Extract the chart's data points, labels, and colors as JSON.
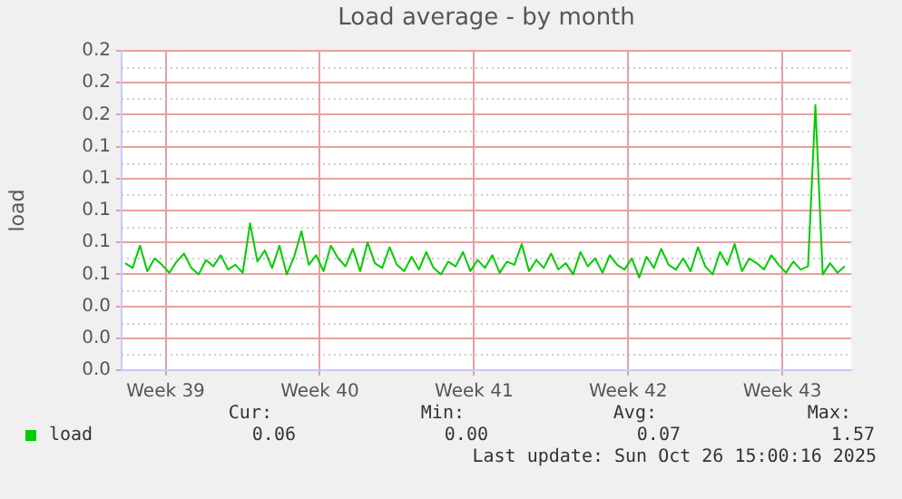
{
  "chart_data": {
    "type": "line",
    "title": "Load average - by month",
    "ylabel": "load",
    "x": [
      "2025-09-23T16:00",
      "2025-09-24T00:00",
      "2025-09-24T08:00",
      "2025-09-24T16:00",
      "2025-09-25T00:00",
      "2025-09-25T08:00",
      "2025-09-25T16:00",
      "2025-09-26T00:00",
      "2025-09-26T08:00",
      "2025-09-26T16:00",
      "2025-09-27T00:00",
      "2025-09-27T08:00",
      "2025-09-27T16:00",
      "2025-09-28T00:00",
      "2025-09-28T08:00",
      "2025-09-28T16:00",
      "2025-09-29T00:00",
      "2025-09-29T08:00",
      "2025-09-29T16:00",
      "2025-09-30T00:00",
      "2025-09-30T08:00",
      "2025-09-30T16:00",
      "2025-10-01T00:00",
      "2025-10-01T08:00",
      "2025-10-01T16:00",
      "2025-10-02T00:00",
      "2025-10-02T08:00",
      "2025-10-02T16:00",
      "2025-10-03T00:00",
      "2025-10-03T08:00",
      "2025-10-03T16:00",
      "2025-10-04T00:00",
      "2025-10-04T08:00",
      "2025-10-04T16:00",
      "2025-10-05T00:00",
      "2025-10-05T08:00",
      "2025-10-05T16:00",
      "2025-10-06T00:00",
      "2025-10-06T08:00",
      "2025-10-06T16:00",
      "2025-10-07T00:00",
      "2025-10-07T08:00",
      "2025-10-07T16:00",
      "2025-10-08T00:00",
      "2025-10-08T08:00",
      "2025-10-08T16:00",
      "2025-10-09T00:00",
      "2025-10-09T08:00",
      "2025-10-09T16:00",
      "2025-10-10T00:00",
      "2025-10-10T08:00",
      "2025-10-10T16:00",
      "2025-10-11T00:00",
      "2025-10-11T08:00",
      "2025-10-11T16:00",
      "2025-10-12T00:00",
      "2025-10-12T08:00",
      "2025-10-12T16:00",
      "2025-10-13T00:00",
      "2025-10-13T08:00",
      "2025-10-13T16:00",
      "2025-10-14T00:00",
      "2025-10-14T08:00",
      "2025-10-14T16:00",
      "2025-10-15T00:00",
      "2025-10-15T08:00",
      "2025-10-15T16:00",
      "2025-10-16T00:00",
      "2025-10-16T08:00",
      "2025-10-16T16:00",
      "2025-10-17T00:00",
      "2025-10-17T08:00",
      "2025-10-17T16:00",
      "2025-10-18T00:00",
      "2025-10-18T08:00",
      "2025-10-18T16:00",
      "2025-10-19T00:00",
      "2025-10-19T08:00",
      "2025-10-19T16:00",
      "2025-10-20T00:00",
      "2025-10-20T08:00",
      "2025-10-20T16:00",
      "2025-10-21T00:00",
      "2025-10-21T08:00",
      "2025-10-21T16:00",
      "2025-10-22T00:00",
      "2025-10-22T08:00",
      "2025-10-22T16:00",
      "2025-10-23T00:00",
      "2025-10-23T08:00",
      "2025-10-23T16:00",
      "2025-10-24T00:00",
      "2025-10-24T08:00",
      "2025-10-24T16:00",
      "2025-10-25T00:00",
      "2025-10-25T08:00",
      "2025-10-25T16:00",
      "2025-10-26T00:00",
      "2025-10-26T08:00"
    ],
    "series": [
      {
        "name": "load",
        "color": "#00cc00",
        "values": [
          0.067,
          0.064,
          0.078,
          0.062,
          0.07,
          0.066,
          0.061,
          0.068,
          0.073,
          0.064,
          0.06,
          0.069,
          0.065,
          0.072,
          0.063,
          0.066,
          0.061,
          0.092,
          0.068,
          0.075,
          0.064,
          0.078,
          0.06,
          0.071,
          0.087,
          0.066,
          0.072,
          0.062,
          0.078,
          0.07,
          0.065,
          0.076,
          0.062,
          0.08,
          0.067,
          0.064,
          0.077,
          0.066,
          0.062,
          0.071,
          0.063,
          0.074,
          0.064,
          0.06,
          0.068,
          0.065,
          0.074,
          0.062,
          0.069,
          0.064,
          0.072,
          0.061,
          0.068,
          0.066,
          0.079,
          0.062,
          0.069,
          0.064,
          0.073,
          0.063,
          0.067,
          0.06,
          0.074,
          0.065,
          0.07,
          0.061,
          0.072,
          0.066,
          0.063,
          0.07,
          0.058,
          0.071,
          0.064,
          0.076,
          0.066,
          0.063,
          0.07,
          0.062,
          0.077,
          0.065,
          0.06,
          0.074,
          0.066,
          0.079,
          0.062,
          0.07,
          0.067,
          0.063,
          0.072,
          0.066,
          0.061,
          0.068,
          0.063,
          0.065,
          0.166,
          0.06,
          0.067,
          0.061,
          0.065
        ]
      }
    ],
    "xlim": [
      "2025-09-23T12:00",
      "2025-10-26T15:00"
    ],
    "xticks": [
      {
        "value": "2025-09-25T12:00",
        "label": "Week 39"
      },
      {
        "value": "2025-10-02T12:00",
        "label": "Week 40"
      },
      {
        "value": "2025-10-09T12:00",
        "label": "Week 41"
      },
      {
        "value": "2025-10-16T12:00",
        "label": "Week 42"
      },
      {
        "value": "2025-10-23T12:00",
        "label": "Week 43"
      }
    ],
    "ylim": [
      0,
      0.2
    ],
    "yticks": [
      {
        "value": 0,
        "label": "0.0"
      },
      {
        "value": 0.02,
        "label": "0.0"
      },
      {
        "value": 0.04,
        "label": "0.0"
      },
      {
        "value": 0.06,
        "label": "0.1"
      },
      {
        "value": 0.08,
        "label": "0.1"
      },
      {
        "value": 0.1,
        "label": "0.1"
      },
      {
        "value": 0.12,
        "label": "0.1"
      },
      {
        "value": 0.14,
        "label": "0.1"
      },
      {
        "value": 0.16,
        "label": "0.2"
      },
      {
        "value": 0.18,
        "label": "0.2"
      },
      {
        "value": 0.2,
        "label": "0.2"
      }
    ],
    "grid": true,
    "legend": "bottom left",
    "marker": "none",
    "line_style": "solid",
    "annotations": [
      "Cur:",
      "Min:",
      "Avg:",
      "Max:",
      "0.06",
      "0.00",
      "0.07",
      "1.57",
      "Last update: Sun Oct 26 15:00:16 2025"
    ]
  }
}
